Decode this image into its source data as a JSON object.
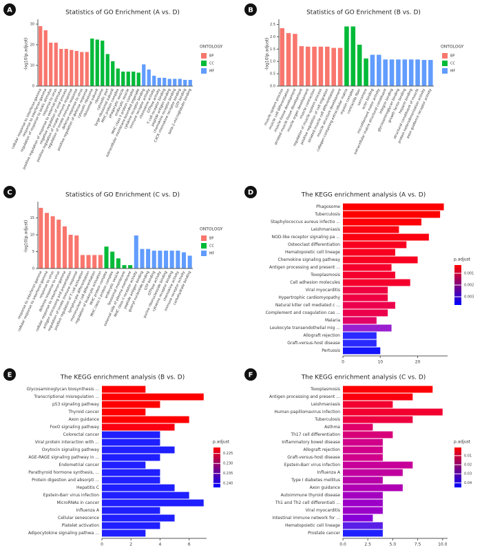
{
  "chart_data": [
    {
      "type": "bar",
      "panel": "A",
      "title": "Statistics of GO Enrichment (A vs. D)",
      "y_label": "-log10(p.adjust)",
      "legend_title": "ONTOLOGY",
      "categories": [
        "cellular response to interferon-gamma",
        "response to interferon-gamma",
        "regulation of response to biotic stimulus",
        "response to virus",
        "positive regulation of response to external stimulus",
        "negative regulation of viral process",
        "positive regulation of innate immune response",
        "regulation of innate immune response",
        "defense response to virus",
        "positive regulation of defense response",
        "cytosolic ribosome",
        "ribosomal subunit",
        "ribosome",
        "cytosolic part",
        "large ribosomal subunit",
        "MHC protein complex",
        "phagocytic vesicle",
        "endocytic vesicle",
        "MHC class II protein complex",
        "extracellular membrane-bounded organelle",
        "cytokine receptor binding",
        "immune receptor activity",
        "chemokine activity",
        "GTPase activity",
        "T cell receptor binding",
        "peptide antigen binding",
        "chemokine receptor binding",
        "CXCR chemokine receptor binding",
        "GTP binding",
        "beta-2-microglobulin binding"
      ],
      "series": [
        {
          "name": "BP",
          "color": "#f8766d",
          "values": [
            29,
            27,
            21,
            21,
            18,
            18,
            17.5,
            17,
            16.5,
            16.5,
            null,
            null,
            null,
            null,
            null,
            null,
            null,
            null,
            null,
            null,
            null,
            null,
            null,
            null,
            null,
            null,
            null,
            null,
            null,
            null
          ]
        },
        {
          "name": "CC",
          "color": "#00ba38",
          "values": [
            null,
            null,
            null,
            null,
            null,
            null,
            null,
            null,
            null,
            null,
            23,
            22.5,
            22,
            15.5,
            12,
            8.5,
            7,
            7,
            7,
            6.5,
            null,
            null,
            null,
            null,
            null,
            null,
            null,
            null,
            null,
            null
          ]
        },
        {
          "name": "MF",
          "color": "#619cff",
          "values": [
            null,
            null,
            null,
            null,
            null,
            null,
            null,
            null,
            null,
            null,
            null,
            null,
            null,
            null,
            null,
            null,
            null,
            null,
            null,
            null,
            10.5,
            8,
            5,
            4,
            4,
            3.5,
            3.5,
            3.5,
            3,
            3
          ]
        }
      ],
      "ylim": [
        0,
        31
      ],
      "yticks": [
        0,
        10,
        20,
        30
      ]
    },
    {
      "type": "bar",
      "panel": "B",
      "title": "Statistics of GO Enrichment (B vs. D)",
      "y_label": "-log10(p.adjust)",
      "legend_title": "ONTOLOGY",
      "categories": [
        "muscle system process",
        "muscle cell differentiation",
        "muscle tissue development",
        "striated muscle tissue development",
        "muscle organ development",
        "muscle contraction",
        "regulation of muscle system process",
        "positive regulation of cell migration",
        "striated muscle cell differentiation",
        "muscle structure development",
        "collagen-containing extracellular matrix",
        "myosin complex",
        "contractile fiber",
        "sarcomere",
        "actin binding",
        "microfilament motor activity",
        "extracellular matrix structural constituent",
        "integrin binding",
        "glycosaminoglycan binding",
        "growth factor binding",
        "heparin binding",
        "structural constituent of muscle",
        "protein heterodimerization activity",
        "axon guidance receptor activity"
      ],
      "series": [
        {
          "name": "BP",
          "color": "#f8766d",
          "values": [
            2.35,
            2.15,
            2.12,
            1.62,
            1.6,
            1.6,
            1.6,
            1.6,
            1.55,
            1.55,
            null,
            null,
            null,
            null,
            null,
            null,
            null,
            null,
            null,
            null,
            null,
            null,
            null,
            null
          ]
        },
        {
          "name": "CC",
          "color": "#00ba38",
          "values": [
            null,
            null,
            null,
            null,
            null,
            null,
            null,
            null,
            null,
            null,
            2.42,
            2.42,
            1.68,
            1.12,
            null,
            null,
            null,
            null,
            null,
            null,
            null,
            null,
            null,
            null
          ]
        },
        {
          "name": "MF",
          "color": "#619cff",
          "values": [
            null,
            null,
            null,
            null,
            null,
            null,
            null,
            null,
            null,
            null,
            null,
            null,
            null,
            null,
            1.27,
            1.27,
            1.08,
            1.08,
            1.08,
            1.08,
            1.08,
            1.08,
            1.06,
            1.06
          ]
        }
      ],
      "ylim": [
        0,
        2.6
      ],
      "yticks": [
        {
          "value": 0,
          "label": "0.0"
        },
        0.5,
        {
          "value": 1,
          "label": "1.0"
        },
        1.5,
        {
          "value": 2,
          "label": "2.0"
        },
        2.5
      ]
    },
    {
      "type": "bar",
      "panel": "C",
      "title": "Statistics of GO Enrichment (C vs. D)",
      "y_label": "-log10(p.adjust)",
      "legend_title": "ONTOLOGY",
      "categories": [
        "response to interferon-gamma",
        "cellular response to interferon-gamma",
        "response to virus",
        "defense response to virus",
        "cellular response to interferon-gamma",
        "antigen processing and presentation",
        "regulation of innate immune response",
        "positive regulation of T cell activation",
        "lymphocyte differentiation",
        "mononuclear cell differentiation",
        "regulation of leukocyte activation",
        "MHC protein complex",
        "MHC class II protein complex",
        "endocytic vesicle",
        "lysosomal membrane",
        "external side of plasma membrane",
        "MHC class II receptor activity",
        "peptide antigen binding",
        "guanyl nucleotide binding",
        "GTP binding",
        "GTPase activity",
        "purine ribonucleoside binding",
        "cytokine receptor binding",
        "chemokine activity",
        "immune receptor activity",
        "carbohydrate binding"
      ],
      "series": [
        {
          "name": "BP",
          "color": "#f8766d",
          "values": [
            18,
            16.5,
            15.5,
            14.5,
            12.5,
            10,
            9.8,
            4,
            4,
            4,
            4,
            null,
            null,
            null,
            null,
            null,
            null,
            null,
            null,
            null,
            null,
            null,
            null,
            null,
            null,
            null
          ]
        },
        {
          "name": "CC",
          "color": "#00ba38",
          "values": [
            null,
            null,
            null,
            null,
            null,
            null,
            null,
            null,
            null,
            null,
            null,
            6.5,
            5,
            3,
            1,
            1,
            null,
            null,
            null,
            null,
            null,
            null,
            null,
            null,
            null,
            null
          ]
        },
        {
          "name": "MF",
          "color": "#619cff",
          "values": [
            null,
            null,
            null,
            null,
            null,
            null,
            null,
            null,
            null,
            null,
            null,
            null,
            null,
            null,
            null,
            null,
            9.8,
            5.8,
            5.8,
            5.3,
            5.3,
            5.3,
            5.3,
            5.3,
            4.8,
            3.8
          ]
        }
      ],
      "ylim": [
        0,
        19
      ],
      "yticks": [
        0,
        5,
        10,
        15
      ]
    },
    {
      "type": "barh",
      "panel": "D",
      "title": "The KEGG enrichment analysis (A vs. D)",
      "legend_title": "p.adjust",
      "categories": [
        "Phagosome",
        "Tuberculosis",
        "Staphylococcus aureus infectio ...",
        "Leishmaniasis",
        "NOD-like receptor signaling pa ...",
        "Osteoclast differentiation",
        "Hematopoietic cell lineage",
        "Chemokine signaling pathway",
        "Antigen processing and present ...",
        "Toxoplasmosis",
        "Cell adhesion molecules",
        "Viral myocarditis",
        "Hypertrophic cardiomyopathy",
        "Natural killer cell mediated c ...",
        "Complement and coagulation cas ...",
        "Malaria",
        "Leukocyte transendothelial mig ...",
        "Allograft rejection",
        "Graft-versus-host disease",
        "Pertussis"
      ],
      "values": [
        27,
        26,
        21,
        15,
        23,
        17,
        14,
        20,
        13,
        14,
        18,
        12,
        12,
        14,
        12,
        9,
        13,
        9,
        9,
        10
      ],
      "colors": [
        "#ff0000",
        "#ff0000",
        "#fd0008",
        "#fb0010",
        "#fb0010",
        "#f80020",
        "#f80020",
        "#f80020",
        "#f5002c",
        "#f5002c",
        "#f5002c",
        "#ef0040",
        "#ef0040",
        "#ec004c",
        "#ec004c",
        "#e30066",
        "#9a1fcf",
        "#2a2aff",
        "#2a2aff",
        "#1414ff"
      ],
      "xlim": [
        0,
        28
      ],
      "xticks": [
        0,
        10,
        20
      ],
      "colorbar_colors": [
        "#ff0000",
        "#0000ff"
      ],
      "colorbar_lim": [
        0.0003,
        0.0037
      ],
      "colorbar_ticks": [
        0.001,
        0.002,
        0.003
      ]
    },
    {
      "type": "barh",
      "panel": "E",
      "title": "The KEGG enrichment analysis (B vs. D)",
      "legend_title": "p.adjust",
      "categories": [
        "Glycosaminoglycan biosynthesis ...",
        "Transcriptional misregulation ...",
        "p53 signaling pathway",
        "Thyroid cancer",
        "Axon guidance",
        "FoxO signaling pathway",
        "Colorectal cancer",
        "Viral protein interaction with ...",
        "Oxytocin signaling pathway",
        "AGE-RAGE signaling pathway in ...",
        "Endometrial cancer",
        "Parathyroid hormone synthesis, ...",
        "Protein digestion and absorpti ...",
        "Hepatitis C",
        "Epstein-Barr virus infection",
        "MicroRNAs in cancer",
        "Influenza A",
        "Cellular senescence",
        "Platelet activation",
        "Adipocytokine signaling pathwa ..."
      ],
      "values": [
        3,
        7,
        4,
        3,
        6,
        5,
        4,
        4,
        5,
        4,
        3,
        4,
        4,
        5,
        6,
        7,
        4,
        5,
        4,
        3
      ],
      "colors": [
        "#ff0000",
        "#ff0000",
        "#ff0000",
        "#ff0000",
        "#ff0000",
        "#fa0010",
        "#1f1fff",
        "#1f1fff",
        "#1f1fff",
        "#1f1fff",
        "#1f1fff",
        "#1f1fff",
        "#1f1fff",
        "#1f1fff",
        "#1f1fff",
        "#1f1fff",
        "#1f1fff",
        "#1f1fff",
        "#1f1fff",
        "#1f1fff"
      ],
      "xlim": [
        0,
        7.2
      ],
      "xticks": [
        0,
        2,
        4,
        6
      ],
      "colorbar_colors": [
        "#ff0000",
        "#0000ff"
      ],
      "colorbar_lim": [
        0.222,
        0.242
      ],
      "colorbar_ticks": [
        0.225,
        {
          "value": 0.23,
          "label": "0.230"
        },
        0.235,
        {
          "value": 0.24,
          "label": "0.240"
        }
      ]
    },
    {
      "type": "barh",
      "panel": "F",
      "title": "The KEGG enrichment analysis (C vs. D)",
      "legend_title": "p.adjust",
      "categories": [
        "Toxoplasmosis",
        "Antigen processing and present ...",
        "Leishmaniasis",
        "Human papillomavirus infection",
        "Tuberculosis",
        "Asthma",
        "Th17 cell differentiation",
        "Inflammatory bowel disease",
        "Allograft rejection",
        "Graft-versus-host disease",
        "Epstein-Barr virus infection",
        "Influenza A",
        "Type I diabetes mellitus",
        "Axon guidance",
        "Autoimmune thyroid disease",
        "Th1 and Th2 cell differentiati ...",
        "Viral myocarditis",
        "Intestinal immune network for ...",
        "Hematopoietic cell lineage",
        "Prostate cancer"
      ],
      "values": [
        9,
        7,
        5,
        10,
        7,
        3,
        5,
        4,
        4,
        4,
        7,
        6,
        4,
        6,
        4,
        4,
        4,
        3,
        4,
        4
      ],
      "colors": [
        "#ff0000",
        "#fa000f",
        "#f20030",
        "#f20030",
        "#ee0040",
        "#e0006a",
        "#d80078",
        "#d0008a",
        "#d0008a",
        "#d0008a",
        "#c8009a",
        "#c0009f",
        "#b800a8",
        "#b000b4",
        "#a400c0",
        "#9c00c8",
        "#9c00c8",
        "#8800d8",
        "#5a1fe6",
        "#2020ff"
      ],
      "xlim": [
        0,
        10.5
      ],
      "xticks": [
        {
          "value": 0,
          "label": "0.0"
        },
        2.5,
        {
          "value": 5,
          "label": "5.0"
        },
        7.5,
        {
          "value": 10,
          "label": "10.0"
        }
      ],
      "colorbar_colors": [
        "#ff0000",
        "#0000ff"
      ],
      "colorbar_lim": [
        0.001,
        0.045
      ],
      "colorbar_ticks": [
        0.01,
        0.02,
        0.03,
        0.04
      ]
    }
  ]
}
